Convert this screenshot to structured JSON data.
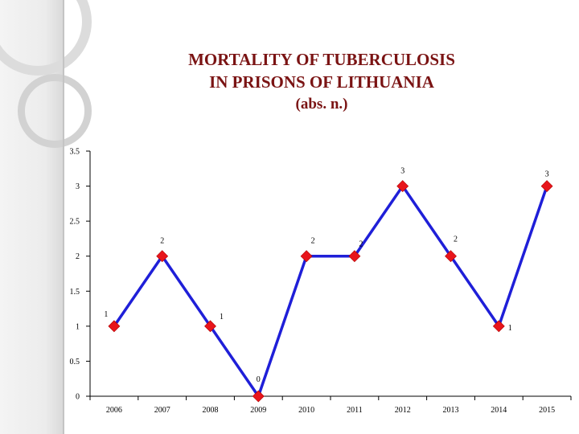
{
  "chart_data": {
    "type": "line",
    "title": "MORTALITY OF TUBERCULOSIS",
    "title_line2": "IN PRISONS OF LITHUANIA",
    "subtitle": "(abs. n.)",
    "categories": [
      "2006",
      "2007",
      "2008",
      "2009",
      "2010",
      "2011",
      "2012",
      "2013",
      "2014",
      "2015"
    ],
    "values": [
      1,
      2,
      1,
      0,
      2,
      2,
      3,
      2,
      1,
      3
    ],
    "ylim": [
      0,
      3.5
    ],
    "yticks": [
      "0",
      "0.5",
      "1",
      "1.5",
      "2",
      "2.5",
      "3",
      "3.5"
    ],
    "xlabel": "",
    "ylabel": "",
    "grid": false,
    "legend": "none",
    "line_color": "#1f1fd8",
    "marker_color": "#e8151b",
    "marker": "diamond"
  }
}
